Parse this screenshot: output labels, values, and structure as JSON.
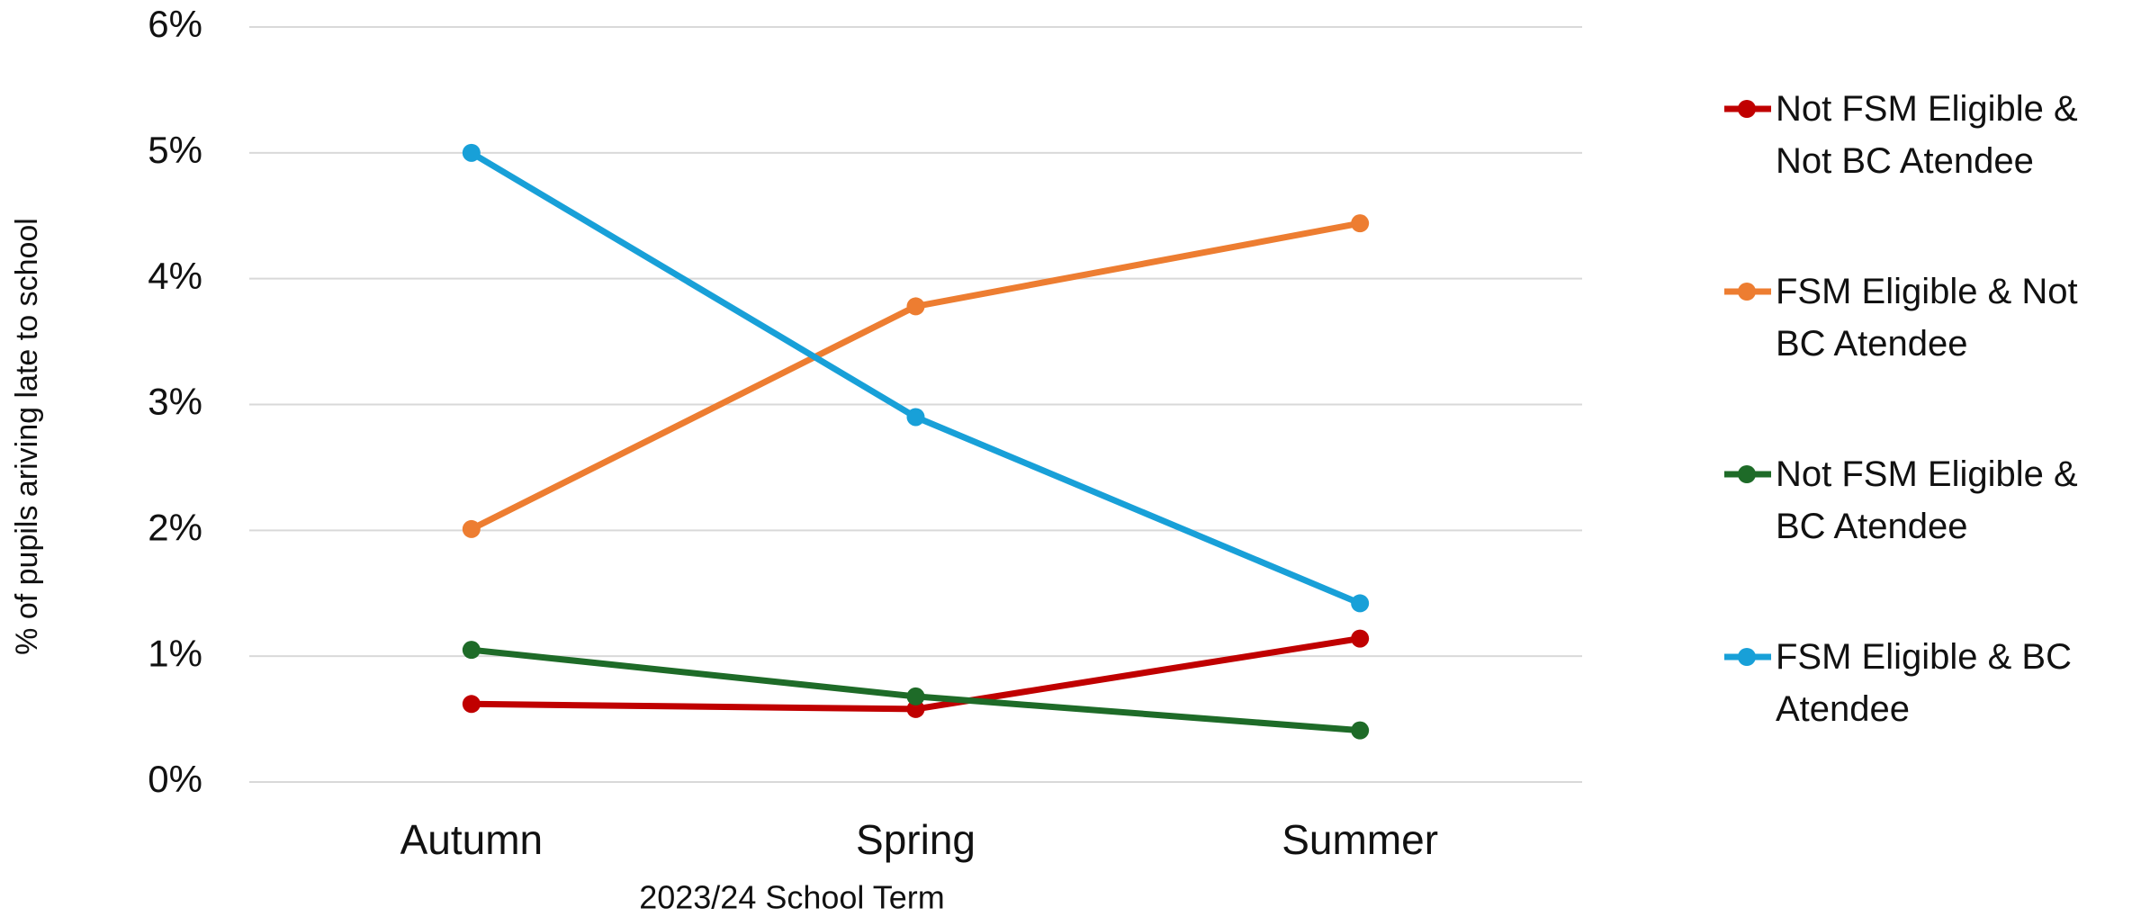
{
  "chart_data": {
    "type": "line",
    "categories": [
      "Autumn",
      "Spring",
      "Summer"
    ],
    "series": [
      {
        "name": "Not FSM Eligible & Not BC Atendee",
        "color": "#c00000",
        "values": [
          0.62,
          0.58,
          1.14
        ]
      },
      {
        "name": "FSM Eligible & Not BC Atendee",
        "color": "#ed7d31",
        "values": [
          2.01,
          3.78,
          4.44
        ]
      },
      {
        "name": "Not FSM Eligible & BC Atendee",
        "color": "#1e6b28",
        "values": [
          1.05,
          0.68,
          0.41
        ]
      },
      {
        "name": "FSM Eligible & BC Atendee",
        "color": "#18a0d8",
        "values": [
          5.0,
          2.9,
          1.42
        ]
      }
    ],
    "xlabel": "2023/24 School Term",
    "ylabel": "% of pupils ariving late to school",
    "ylim": [
      0,
      6
    ],
    "yticks": [
      {
        "value": 0,
        "label": "0%"
      },
      {
        "value": 1,
        "label": "1%"
      },
      {
        "value": 2,
        "label": "2%"
      },
      {
        "value": 3,
        "label": "3%"
      },
      {
        "value": 4,
        "label": "4%"
      },
      {
        "value": 5,
        "label": "5%"
      },
      {
        "value": 6,
        "label": "6%"
      }
    ],
    "grid": true,
    "legend": "right"
  }
}
